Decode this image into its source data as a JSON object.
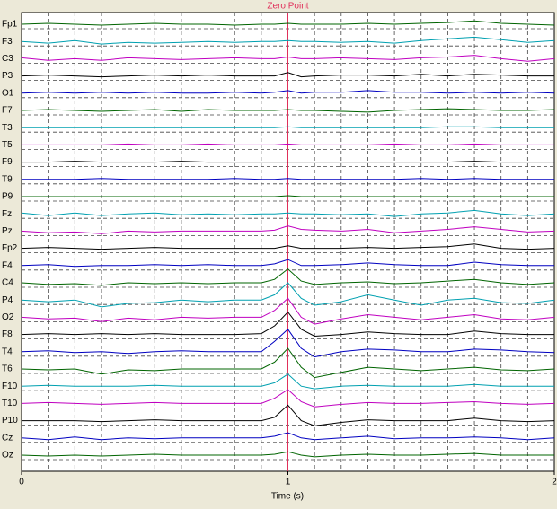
{
  "chart_data": {
    "type": "line",
    "x": [
      0,
      0.1,
      0.2,
      0.3,
      0.4,
      0.5,
      0.6,
      0.7,
      0.8,
      0.9,
      0.95,
      1,
      1.05,
      1.1,
      1.2,
      1.3,
      1.4,
      1.5,
      1.6,
      1.7,
      1.8,
      1.9,
      2
    ],
    "xlim": [
      0,
      2
    ],
    "xticks": [
      0,
      1,
      2
    ],
    "xgrid": [
      0.1,
      0.2,
      0.3,
      0.4,
      0.5,
      0.6,
      0.7,
      0.8,
      0.9,
      1.1,
      1.2,
      1.3,
      1.4,
      1.5,
      1.6,
      1.7,
      1.8,
      1.9
    ],
    "xlabel": "Time (s)",
    "annotation": {
      "x": 1,
      "label": "Zero Point",
      "color": "#e0305a"
    },
    "series": [
      {
        "name": "Fp1",
        "color": "#006400",
        "values": [
          0,
          0.05,
          0,
          -0.05,
          0,
          0.05,
          0,
          0,
          -0.05,
          0,
          0,
          0.05,
          0,
          0,
          0,
          0.05,
          0,
          0.05,
          0.1,
          0.2,
          0.05,
          0,
          -0.05
        ]
      },
      {
        "name": "F3",
        "color": "#00a0b0",
        "values": [
          0,
          -0.1,
          0.05,
          -0.15,
          -0.05,
          -0.1,
          -0.05,
          0,
          -0.05,
          0,
          0,
          0.05,
          0,
          0,
          -0.05,
          0,
          -0.1,
          0.05,
          0.15,
          0.25,
          0.1,
          -0.05,
          0.05
        ]
      },
      {
        "name": "C3",
        "color": "#c000c0",
        "values": [
          0.05,
          -0.1,
          0,
          -0.1,
          0.05,
          0,
          -0.05,
          0,
          0.05,
          0,
          0,
          0.1,
          0,
          0,
          0.05,
          0,
          -0.05,
          0.05,
          0.1,
          0.2,
          0,
          -0.15,
          0
        ]
      },
      {
        "name": "P3",
        "color": "#000000",
        "values": [
          0,
          0.05,
          0,
          -0.05,
          0,
          0.05,
          0,
          0.05,
          0,
          0,
          0,
          0.2,
          -0.05,
          0,
          0.05,
          0.05,
          0,
          0.1,
          0,
          0.1,
          0.05,
          0,
          0
        ]
      },
      {
        "name": "O1",
        "color": "#0000c0",
        "values": [
          0,
          0.05,
          0,
          0.05,
          0,
          0.05,
          0,
          0,
          0.05,
          0,
          0.05,
          0.15,
          0,
          0.05,
          0.05,
          0.15,
          0.05,
          0.05,
          0,
          0.05,
          0,
          0.05,
          0
        ]
      },
      {
        "name": "F7",
        "color": "#006400",
        "values": [
          0,
          0.05,
          0,
          -0.05,
          0,
          0.05,
          -0.05,
          0.05,
          0,
          0,
          0,
          0.05,
          0,
          0,
          -0.05,
          -0.1,
          0,
          0.05,
          0.1,
          0.05,
          0,
          0,
          0.05
        ]
      },
      {
        "name": "T3",
        "color": "#00a0b0",
        "values": [
          0,
          0,
          0,
          0,
          0,
          0,
          0,
          0,
          0,
          0,
          0,
          0.05,
          0,
          0,
          0,
          0,
          0,
          0,
          0.05,
          0.05,
          0,
          0,
          0
        ]
      },
      {
        "name": "T5",
        "color": "#c000c0",
        "values": [
          0,
          0,
          0,
          0,
          0.05,
          0,
          0,
          0.05,
          0,
          0,
          0,
          0.05,
          0,
          0,
          0,
          0,
          0.05,
          0,
          0,
          0.05,
          0,
          0,
          0
        ]
      },
      {
        "name": "F9",
        "color": "#000000",
        "values": [
          0,
          0,
          0.05,
          0,
          0,
          0,
          0.05,
          0,
          0,
          0,
          0,
          0,
          0,
          0,
          0,
          0,
          0,
          0,
          0,
          0.05,
          0,
          0,
          0
        ]
      },
      {
        "name": "T9",
        "color": "#0000c0",
        "values": [
          0,
          0,
          0,
          0.05,
          0,
          0,
          0,
          0,
          0.05,
          0,
          0,
          0.05,
          0,
          0,
          0,
          0,
          0,
          0.05,
          0,
          0.05,
          0,
          0,
          0
        ]
      },
      {
        "name": "P9",
        "color": "#006400",
        "values": [
          0,
          0,
          0,
          0,
          0,
          0,
          0,
          0,
          0,
          0,
          0,
          0.05,
          0,
          0,
          0,
          0,
          0,
          0,
          0,
          0,
          0,
          0,
          0
        ]
      },
      {
        "name": "Fz",
        "color": "#00a0b0",
        "values": [
          0.05,
          -0.1,
          0.05,
          -0.1,
          0,
          0.05,
          -0.05,
          0,
          -0.05,
          0,
          0,
          0.05,
          0,
          0,
          -0.05,
          0,
          -0.15,
          0,
          0.05,
          0.2,
          0,
          -0.1,
          0
        ]
      },
      {
        "name": "Pz",
        "color": "#c000c0",
        "values": [
          0,
          -0.1,
          -0.05,
          -0.15,
          0,
          -0.05,
          0,
          0,
          0,
          0,
          0.05,
          0.3,
          0.1,
          0.05,
          0,
          0.1,
          -0.1,
          0,
          0.1,
          0.25,
          0.1,
          -0.05,
          0
        ]
      },
      {
        "name": "Fp2",
        "color": "#000000",
        "values": [
          0,
          0.05,
          0,
          -0.05,
          0,
          0.05,
          0,
          0,
          0,
          0,
          0,
          0.15,
          0,
          0,
          0,
          0.05,
          0,
          0.05,
          0.1,
          0.25,
          0,
          -0.05,
          0
        ]
      },
      {
        "name": "F4",
        "color": "#0000c0",
        "values": [
          0,
          0.05,
          -0.05,
          0,
          0,
          0.05,
          0,
          0.05,
          0,
          0,
          0.1,
          0.35,
          0,
          0,
          0.05,
          0.15,
          0.05,
          0,
          0,
          0.2,
          0.05,
          0,
          0
        ]
      },
      {
        "name": "C4",
        "color": "#006400",
        "values": [
          0,
          -0.1,
          -0.05,
          -0.15,
          0,
          -0.05,
          0,
          -0.05,
          0,
          0,
          0.2,
          0.8,
          0.1,
          -0.1,
          0,
          0.05,
          -0.05,
          0,
          0.1,
          0.2,
          0,
          -0.1,
          0
        ]
      },
      {
        "name": "P4",
        "color": "#00a0b0",
        "values": [
          0,
          -0.1,
          0,
          -0.4,
          -0.2,
          -0.15,
          0,
          -0.1,
          0,
          0,
          0.3,
          1,
          0.1,
          -0.3,
          -0.1,
          0.3,
          0,
          -0.3,
          0,
          0.1,
          -0.15,
          -0.2,
          0
        ]
      },
      {
        "name": "O2",
        "color": "#c000c0",
        "values": [
          0,
          -0.1,
          -0.05,
          -0.25,
          -0.05,
          -0.15,
          0,
          -0.05,
          0,
          0,
          0.4,
          1.1,
          0,
          -0.4,
          -0.1,
          0.15,
          0,
          -0.15,
          0,
          0.15,
          -0.1,
          -0.15,
          0
        ]
      },
      {
        "name": "F8",
        "color": "#000000",
        "values": [
          0,
          0.05,
          0,
          0.05,
          0,
          0.05,
          0,
          0,
          0,
          0.05,
          0.5,
          1.3,
          0.3,
          -0.1,
          0,
          0.15,
          0.05,
          0,
          0,
          0.2,
          0.05,
          0,
          0
        ]
      },
      {
        "name": "T4",
        "color": "#0000c0",
        "values": [
          0,
          0.05,
          -0.05,
          0,
          -0.1,
          0,
          0.05,
          0,
          0,
          0,
          0.6,
          1.3,
          0.2,
          -0.3,
          0,
          0.15,
          0.1,
          0,
          0,
          0.15,
          0.1,
          0,
          -0.05
        ]
      },
      {
        "name": "T6",
        "color": "#006400",
        "values": [
          0,
          -0.05,
          0,
          -0.3,
          -0.05,
          -0.1,
          0,
          0,
          0,
          0,
          0.4,
          1.2,
          0.1,
          -0.5,
          -0.2,
          0.1,
          0,
          -0.1,
          0,
          0.1,
          -0.05,
          -0.1,
          0
        ]
      },
      {
        "name": "F10",
        "color": "#00a0b0",
        "values": [
          0,
          0.05,
          0,
          0,
          0,
          0.05,
          0,
          0,
          0,
          0,
          0.2,
          0.7,
          0,
          -0.15,
          0,
          0.05,
          0,
          0,
          0,
          0.1,
          0,
          0,
          0
        ]
      },
      {
        "name": "T10",
        "color": "#c000c0",
        "values": [
          0,
          0.05,
          0,
          -0.05,
          0,
          0.05,
          0,
          0,
          0,
          0,
          0.3,
          0.8,
          0.1,
          -0.2,
          -0.05,
          0.05,
          0,
          0,
          0.05,
          0.1,
          0,
          -0.05,
          0
        ]
      },
      {
        "name": "P10",
        "color": "#000000",
        "values": [
          0,
          0,
          0,
          -0.05,
          0,
          0.05,
          0,
          0,
          0,
          0,
          0.2,
          0.9,
          0,
          -0.3,
          -0.1,
          0.05,
          0,
          0,
          0,
          0.15,
          0,
          -0.05,
          0
        ]
      },
      {
        "name": "Cz",
        "color": "#0000c0",
        "values": [
          0,
          -0.1,
          0.05,
          -0.1,
          0,
          -0.05,
          0,
          0,
          0,
          0,
          0.1,
          0.3,
          0,
          -0.1,
          0,
          0.1,
          -0.05,
          0,
          0,
          0.05,
          0,
          -0.1,
          0
        ]
      },
      {
        "name": "Oz",
        "color": "#006400",
        "values": [
          0,
          -0.05,
          0,
          -0.05,
          0,
          0.05,
          0,
          0,
          0,
          0,
          0.05,
          0.2,
          0,
          -0.1,
          0,
          0.05,
          0,
          0,
          0.05,
          0.1,
          0,
          0,
          0
        ]
      }
    ]
  }
}
